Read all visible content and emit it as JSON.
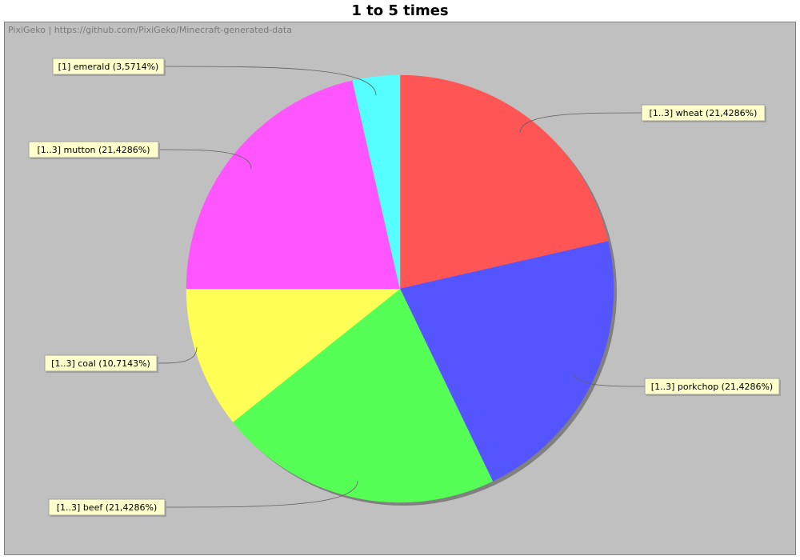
{
  "chart_title": "1 to 5 times",
  "source_note": "PixiGeko | https://github.com/PixiGeko/Minecraft-generated-data",
  "colors": {
    "background": "#c0c0c0",
    "label_fill": "#ffffcc",
    "label_border": "#a0a0a0",
    "shadow": "#808080"
  },
  "chart_data": {
    "type": "pie",
    "title": "1 to 5 times",
    "start_angle_deg": 90,
    "direction": "clockwise",
    "slices": [
      {
        "name": "wheat",
        "label": "[1..3] wheat (21,4286%)",
        "value": 21.4286,
        "color": "#ff5555"
      },
      {
        "name": "porkchop",
        "label": "[1..3] porkchop (21,4286%)",
        "value": 21.4286,
        "color": "#5555ff"
      },
      {
        "name": "beef",
        "label": "[1..3] beef (21,4286%)",
        "value": 21.4286,
        "color": "#55ff55"
      },
      {
        "name": "coal",
        "label": "[1..3] coal (10,7143%)",
        "value": 10.7143,
        "color": "#ffff55"
      },
      {
        "name": "mutton",
        "label": "[1..3] mutton (21,4286%)",
        "value": 21.4286,
        "color": "#ff55ff"
      },
      {
        "name": "emerald",
        "label": "[1] emerald (3,5714%)",
        "value": 3.5714,
        "color": "#55ffff"
      }
    ]
  }
}
